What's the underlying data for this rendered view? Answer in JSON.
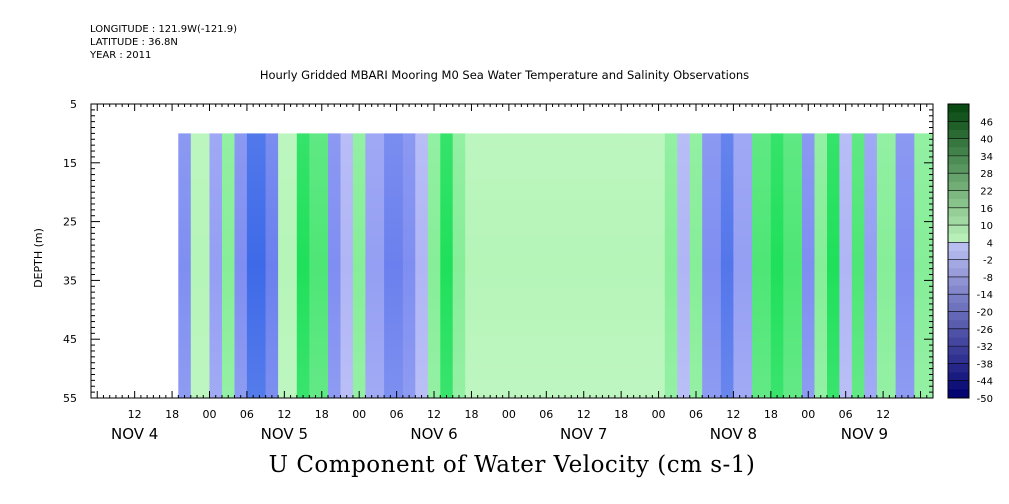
{
  "meta": {
    "longitude": "LONGITUDE : 121.9W(-121.9)",
    "latitude": "LATITUDE : 36.8N",
    "year": "YEAR : 2011"
  },
  "title": "Hourly Gridded MBARI Mooring M0 Sea Water Temperature and Salinity Observations",
  "variable_title": "U Component of Water Velocity (cm s-1)",
  "colors": {
    "blue_strong": "#3a6ae8",
    "blue_mid": "#7a8ff0",
    "blue_light": "#a9b2f6",
    "green_light": "#b8f5b8",
    "green_mid": "#88ee96",
    "green_strong": "#22e05c"
  },
  "chart_data": {
    "type": "heatmap",
    "ylabel": "DEPTH (m)",
    "y_ticks": [
      "5",
      "15",
      "25",
      "35",
      "45",
      "55"
    ],
    "y_tick_values": [
      5,
      15,
      25,
      35,
      45,
      55
    ],
    "ylim": [
      55,
      5
    ],
    "data_depth_range": [
      10,
      55
    ],
    "x_hour_ticks": [
      "12",
      "18",
      "00",
      "06",
      "12",
      "18",
      "00",
      "06",
      "12",
      "18",
      "00",
      "06",
      "12",
      "18",
      "00",
      "06",
      "12",
      "18",
      "00",
      "06",
      "12"
    ],
    "x_hour_values": [
      12,
      18,
      24,
      30,
      36,
      42,
      48,
      54,
      60,
      66,
      72,
      78,
      84,
      90,
      96,
      102,
      108,
      114,
      120,
      126,
      132
    ],
    "x_day_labels": [
      "NOV 4",
      "NOV 5",
      "NOV 6",
      "NOV 7",
      "NOV 8",
      "NOV 9"
    ],
    "x_day_values": [
      12,
      36,
      60,
      84,
      108,
      129
    ],
    "xlim": [
      5,
      140
    ],
    "x_units": "hours from NOV 4 00:00",
    "data_time_range": [
      19,
      140
    ],
    "colorbar_labels": [
      "46",
      "40",
      "34",
      "28",
      "22",
      "16",
      "10",
      "4",
      "-2",
      "-8",
      "-14",
      "-20",
      "-26",
      "-32",
      "-38",
      "-44",
      "-50"
    ],
    "colorbar_levels": [
      52,
      49,
      46,
      43,
      40,
      37,
      34,
      31,
      28,
      25,
      22,
      19,
      16,
      13,
      10,
      7,
      4,
      1,
      -2,
      -5,
      -8,
      -11,
      -14,
      -17,
      -20,
      -23,
      -26,
      -29,
      -32,
      -35,
      -38,
      -41,
      -44,
      -47,
      -50
    ],
    "band_profile": [
      {
        "t": 19,
        "u": -10
      },
      {
        "t": 21,
        "u": 2
      },
      {
        "t": 24,
        "u": -6
      },
      {
        "t": 26,
        "u": 4
      },
      {
        "t": 28,
        "u": -10
      },
      {
        "t": 30,
        "u": -22
      },
      {
        "t": 33,
        "u": -16
      },
      {
        "t": 35,
        "u": 2
      },
      {
        "t": 38,
        "u": 12
      },
      {
        "t": 40,
        "u": 8
      },
      {
        "t": 43,
        "u": -10
      },
      {
        "t": 45,
        "u": -4
      },
      {
        "t": 47,
        "u": 6
      },
      {
        "t": 49,
        "u": -8
      },
      {
        "t": 52,
        "u": -14
      },
      {
        "t": 55,
        "u": -10
      },
      {
        "t": 57,
        "u": -4
      },
      {
        "t": 59,
        "u": 6
      },
      {
        "t": 61,
        "u": 14
      },
      {
        "t": 63,
        "u": 6
      },
      {
        "t": 65,
        "u": 2
      },
      {
        "t": 72,
        "u": 1
      },
      {
        "t": 80,
        "u": 2
      },
      {
        "t": 90,
        "u": 3
      },
      {
        "t": 97,
        "u": 4
      },
      {
        "t": 99,
        "u": -4
      },
      {
        "t": 101,
        "u": 6
      },
      {
        "t": 103,
        "u": -12
      },
      {
        "t": 106,
        "u": -18
      },
      {
        "t": 108,
        "u": -8
      },
      {
        "t": 111,
        "u": 10
      },
      {
        "t": 114,
        "u": 18
      },
      {
        "t": 116,
        "u": 8
      },
      {
        "t": 119,
        "u": -10
      },
      {
        "t": 121,
        "u": 4
      },
      {
        "t": 123,
        "u": 12
      },
      {
        "t": 125,
        "u": -2
      },
      {
        "t": 127,
        "u": 8
      },
      {
        "t": 129,
        "u": -6
      },
      {
        "t": 131,
        "u": 4
      },
      {
        "t": 134,
        "u": -12
      },
      {
        "t": 137,
        "u": 4
      },
      {
        "t": 140,
        "u": -6
      }
    ]
  }
}
